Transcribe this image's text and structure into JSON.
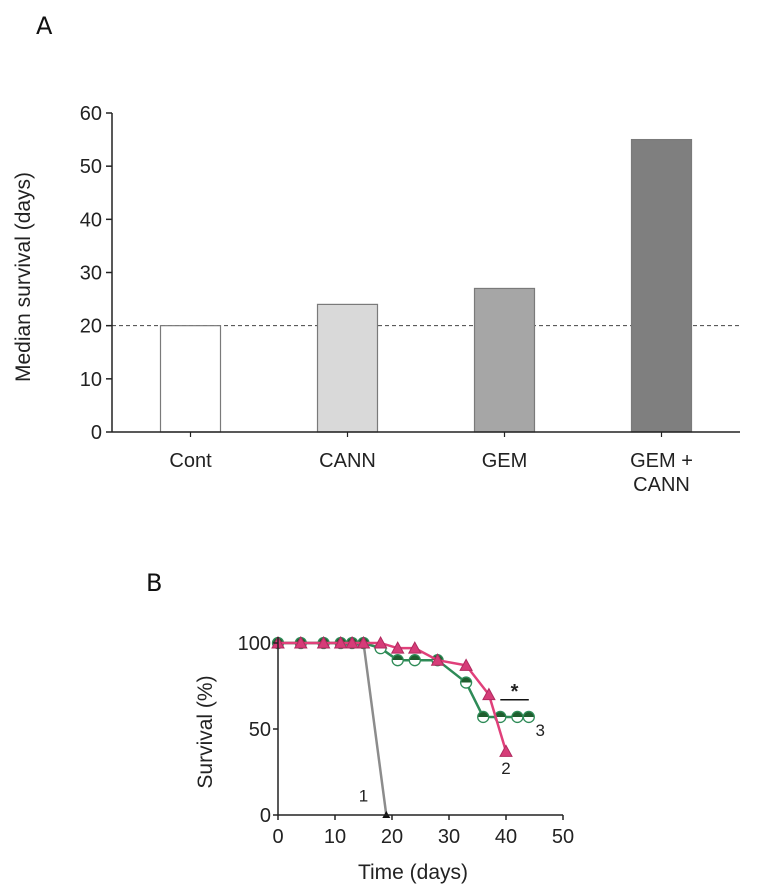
{
  "chart_data": [
    {
      "panel_label": "A",
      "type": "bar",
      "ylabel": "Median survival (days)",
      "ylim": [
        0,
        60
      ],
      "yticks": [
        "0",
        "10",
        "20",
        "30",
        "40",
        "50",
        "60"
      ],
      "categories": [
        {
          "lines": [
            "Cont"
          ]
        },
        {
          "lines": [
            "CANN"
          ]
        },
        {
          "lines": [
            "GEM"
          ]
        },
        {
          "lines": [
            "GEM +",
            "CANN"
          ]
        }
      ],
      "values": [
        20,
        24,
        27,
        55
      ],
      "bar_colors": [
        "#ffffff",
        "#d9d9d9",
        "#a6a6a6",
        "#7f7f7f"
      ],
      "reference_line": {
        "y": 20,
        "style": "dashed"
      },
      "grid": false
    },
    {
      "panel_label": "B",
      "type": "line",
      "xlabel": "Time (days)",
      "ylabel": "Survival (%)",
      "xlim": [
        0,
        50
      ],
      "ylim": [
        0,
        100
      ],
      "xticks": [
        "0",
        "10",
        "20",
        "30",
        "40",
        "50"
      ],
      "yticks": [
        "0",
        "50",
        "100"
      ],
      "series": [
        {
          "name": "1",
          "color": "#8c8c8c",
          "marker": "circle-filled-black",
          "x": [
            0,
            4,
            8,
            11,
            13,
            15,
            19
          ],
          "y": [
            100,
            100,
            100,
            100,
            100,
            100,
            0
          ]
        },
        {
          "name": "3",
          "color": "#2e8b57",
          "marker": "circle-half-green",
          "x": [
            0,
            4,
            8,
            11,
            13,
            15,
            18,
            21,
            24,
            28,
            33,
            36,
            39,
            42,
            44
          ],
          "y": [
            100,
            100,
            100,
            100,
            100,
            100,
            97,
            90,
            90,
            90,
            77,
            57,
            57,
            57,
            57
          ]
        },
        {
          "name": "2",
          "color": "#e0407a",
          "marker": "triangle-pink",
          "x": [
            0,
            4,
            8,
            11,
            13,
            15,
            18,
            21,
            24,
            28,
            33,
            37,
            40
          ],
          "y": [
            100,
            100,
            100,
            100,
            100,
            100,
            100,
            97,
            97,
            90,
            87,
            70,
            37
          ]
        }
      ],
      "annotation": {
        "text": "*",
        "x_range": [
          39,
          44
        ],
        "y": 67
      },
      "grid": false
    }
  ]
}
